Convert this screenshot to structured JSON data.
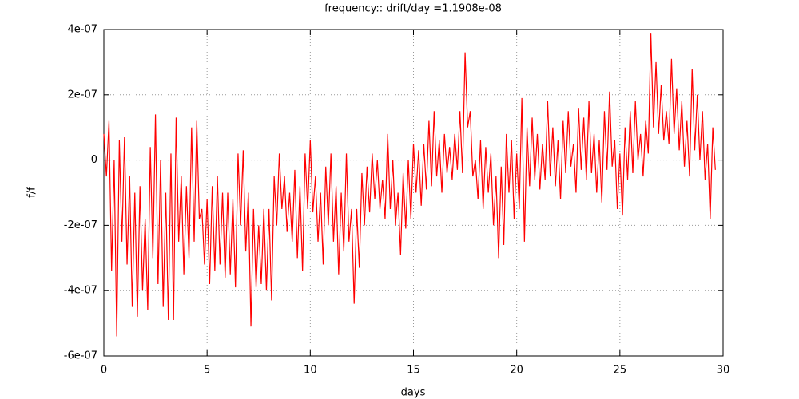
{
  "chart_data": {
    "type": "line",
    "title": "frequency:: drift/day =1.1908e-08",
    "xlabel": "days",
    "ylabel": "f/f",
    "xlim": [
      0,
      30
    ],
    "xticks": [
      0,
      5,
      10,
      15,
      20,
      25,
      30
    ],
    "ylim": [
      -6e-07,
      4e-07
    ],
    "yticks": [
      {
        "value": -6e-07,
        "label": "-6e-07"
      },
      {
        "value": -4e-07,
        "label": "-4e-07"
      },
      {
        "value": -2e-07,
        "label": "-2e-07"
      },
      0,
      {
        "value": 2e-07,
        "label": "2e-07"
      },
      {
        "value": 4e-07,
        "label": "4e-07"
      }
    ],
    "grid": true,
    "x": [
      0,
      0.125,
      0.25,
      0.375,
      0.5,
      0.625,
      0.75,
      0.875,
      1,
      1.125,
      1.25,
      1.375,
      1.5,
      1.625,
      1.75,
      1.875,
      2,
      2.125,
      2.25,
      2.375,
      2.5,
      2.625,
      2.75,
      2.875,
      3,
      3.125,
      3.25,
      3.375,
      3.5,
      3.625,
      3.75,
      3.875,
      4,
      4.125,
      4.25,
      4.375,
      4.5,
      4.625,
      4.75,
      4.875,
      5,
      5.125,
      5.25,
      5.375,
      5.5,
      5.625,
      5.75,
      5.875,
      6,
      6.125,
      6.25,
      6.375,
      6.5,
      6.625,
      6.75,
      6.875,
      7,
      7.125,
      7.25,
      7.375,
      7.5,
      7.625,
      7.75,
      7.875,
      8,
      8.125,
      8.25,
      8.375,
      8.5,
      8.625,
      8.75,
      8.875,
      9,
      9.125,
      9.25,
      9.375,
      9.5,
      9.625,
      9.75,
      9.875,
      10,
      10.125,
      10.25,
      10.375,
      10.5,
      10.625,
      10.75,
      10.875,
      11,
      11.125,
      11.25,
      11.375,
      11.5,
      11.625,
      11.75,
      11.875,
      12,
      12.125,
      12.25,
      12.375,
      12.5,
      12.625,
      12.75,
      12.875,
      13,
      13.125,
      13.25,
      13.375,
      13.5,
      13.625,
      13.75,
      13.875,
      14,
      14.125,
      14.25,
      14.375,
      14.5,
      14.625,
      14.75,
      14.875,
      15,
      15.125,
      15.25,
      15.375,
      15.5,
      15.625,
      15.75,
      15.875,
      16,
      16.125,
      16.25,
      16.375,
      16.5,
      16.625,
      16.75,
      16.875,
      17,
      17.125,
      17.25,
      17.375,
      17.5,
      17.625,
      17.75,
      17.875,
      18,
      18.125,
      18.25,
      18.375,
      18.5,
      18.625,
      18.75,
      18.875,
      19,
      19.125,
      19.25,
      19.375,
      19.5,
      19.625,
      19.75,
      19.875,
      20,
      20.125,
      20.25,
      20.375,
      20.5,
      20.625,
      20.75,
      20.875,
      21,
      21.125,
      21.25,
      21.375,
      21.5,
      21.625,
      21.75,
      21.875,
      22,
      22.125,
      22.25,
      22.375,
      22.5,
      22.625,
      22.75,
      22.875,
      23,
      23.125,
      23.25,
      23.375,
      23.5,
      23.625,
      23.75,
      23.875,
      24,
      24.125,
      24.25,
      24.375,
      24.5,
      24.625,
      24.75,
      24.875,
      25,
      25.125,
      25.25,
      25.375,
      25.5,
      25.625,
      25.75,
      25.875,
      26,
      26.125,
      26.25,
      26.375,
      26.5,
      26.625,
      26.75,
      26.875,
      27,
      27.125,
      27.25,
      27.375,
      27.5,
      27.625,
      27.75,
      27.875,
      28,
      28.125,
      28.25,
      28.375,
      28.5,
      28.625,
      28.75,
      28.875,
      29,
      29.125,
      29.25,
      29.375,
      29.5,
      29.625
    ],
    "series": [
      {
        "color": "#ff0000",
        "values": [
          8e-08,
          -5e-08,
          1.2e-07,
          -3.4e-07,
          0,
          -5.4e-07,
          6e-08,
          -2.5e-07,
          7e-08,
          -3.2e-07,
          -5e-08,
          -4.5e-07,
          -1e-07,
          -4.8e-07,
          -8e-08,
          -4e-07,
          -1.8e-07,
          -4.6e-07,
          4e-08,
          -3e-07,
          1.4e-07,
          -3.8e-07,
          0,
          -4.5e-07,
          -1e-07,
          -4.9e-07,
          2e-08,
          -4.9e-07,
          1.3e-07,
          -2.5e-07,
          -5e-08,
          -3.5e-07,
          -8e-08,
          -3e-07,
          1e-07,
          -2.5e-07,
          1.2e-07,
          -1.8e-07,
          -1.5e-07,
          -3.2e-07,
          -1.2e-07,
          -3.8e-07,
          -8e-08,
          -3.4e-07,
          -5e-08,
          -3.2e-07,
          -1e-07,
          -3.6e-07,
          -1e-07,
          -3.5e-07,
          -1.2e-07,
          -3.9e-07,
          2e-08,
          -2e-07,
          3e-08,
          -2.8e-07,
          -1e-07,
          -5.1e-07,
          -1.5e-07,
          -3.9e-07,
          -2e-07,
          -3.8e-07,
          -1.5e-07,
          -4e-07,
          -1.5e-07,
          -4.3e-07,
          -5e-08,
          -2e-07,
          2e-08,
          -1.5e-07,
          -5e-08,
          -2.2e-07,
          -1e-07,
          -2.5e-07,
          -3e-08,
          -3e-07,
          -8e-08,
          -3.4e-07,
          2e-08,
          -1.5e-07,
          6e-08,
          -1.6e-07,
          -5e-08,
          -2.5e-07,
          -1e-07,
          -3.2e-07,
          -2e-08,
          -2e-07,
          2e-08,
          -2.5e-07,
          -8e-08,
          -3.5e-07,
          -1e-07,
          -2.8e-07,
          2e-08,
          -2.5e-07,
          -1.5e-07,
          -4.4e-07,
          -1.5e-07,
          -3.3e-07,
          -4e-08,
          -2e-07,
          -2e-08,
          -1.6e-07,
          2e-08,
          -1.2e-07,
          0,
          -1.5e-07,
          -6e-08,
          -1.8e-07,
          8e-08,
          -1.5e-07,
          0,
          -2e-07,
          -1e-07,
          -2.9e-07,
          -4e-08,
          -2.1e-07,
          0,
          -1.8e-07,
          5e-08,
          -1e-07,
          3e-08,
          -1.4e-07,
          5e-08,
          -9e-08,
          1.2e-07,
          -8e-08,
          1.5e-07,
          -5e-08,
          6e-08,
          -1e-07,
          8e-08,
          -4e-08,
          4e-08,
          -6e-08,
          8e-08,
          -3e-08,
          1.5e-07,
          -4e-08,
          3.3e-07,
          1e-07,
          1.5e-07,
          -5e-08,
          0,
          -1.2e-07,
          6e-08,
          -1.5e-07,
          4e-08,
          -1e-07,
          2e-08,
          -2e-07,
          -5e-08,
          -3e-07,
          -2e-08,
          -2.6e-07,
          8e-08,
          -1e-07,
          6e-08,
          -1.8e-07,
          2e-08,
          -1.5e-07,
          1.9e-07,
          -2.5e-07,
          1e-07,
          -8e-08,
          1.3e-07,
          -6e-08,
          8e-08,
          -9e-08,
          5e-08,
          -6e-08,
          1.8e-07,
          -5e-08,
          1e-07,
          -8e-08,
          6e-08,
          -1.2e-07,
          1.2e-07,
          -4e-08,
          1.5e-07,
          -2e-08,
          5e-08,
          -1e-07,
          1.6e-07,
          -3e-08,
          1.3e-07,
          -6e-08,
          1.8e-07,
          -4e-08,
          8e-08,
          -1e-07,
          6e-08,
          -1.3e-07,
          1.5e-07,
          -3e-08,
          2.1e-07,
          -2e-08,
          6e-08,
          -1.5e-07,
          2e-08,
          -1.7e-07,
          1e-07,
          -6e-08,
          1.5e-07,
          -4e-08,
          1.8e-07,
          0,
          8e-08,
          -5e-08,
          1.2e-07,
          2e-08,
          3.9e-07,
          1e-07,
          3e-07,
          8e-08,
          2.3e-07,
          6e-08,
          1.5e-07,
          5e-08,
          3.1e-07,
          8e-08,
          2.2e-07,
          3e-08,
          1.8e-07,
          -2e-08,
          1.2e-07,
          -5e-08,
          2.8e-07,
          3e-08,
          2e-07,
          0,
          1.5e-07,
          -6e-08,
          5e-08,
          -1.8e-07,
          1e-07,
          -3e-08
        ]
      }
    ]
  }
}
